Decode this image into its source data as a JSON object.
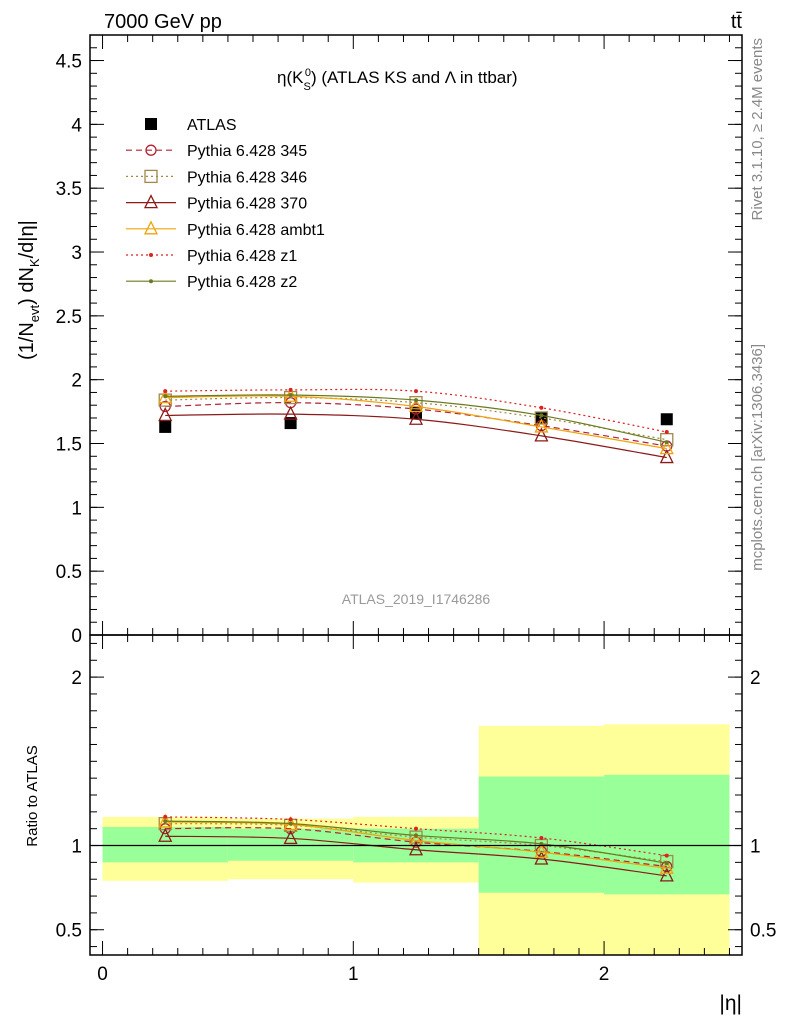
{
  "header": {
    "left_label": "7000 GeV pp",
    "right_label": "tt̄"
  },
  "side_labels": {
    "rivet": "Rivet 3.1.10, ≥ 2.4M events",
    "mcplots": "mcplots.cern.ch [arXiv:1306.3436]"
  },
  "chart_data": [
    {
      "type": "line",
      "panel": "main",
      "title": "η(K0S) (ATLAS KS and Λ in ttbar)",
      "title_parts": {
        "eta": "η(K",
        "sub": "S",
        "sup": "0",
        "rest": ") (ATLAS KS and Λ in ttbar)"
      },
      "ylabel": "(1/Nevt) dNK/d|η|",
      "ylabel_parts": {
        "a": "(1/N",
        "evt": "evt",
        "b": ") dN",
        "k": "K",
        "c": "/d|η|"
      },
      "watermark": "ATLAS_2019_I1746286",
      "xlim": [
        -0.05,
        2.55
      ],
      "ylim": [
        0,
        4.7
      ],
      "yticks": [
        0,
        0.5,
        1,
        1.5,
        2,
        2.5,
        3,
        3.5,
        4,
        4.5
      ],
      "ytick_labels": [
        "0",
        "0.5",
        "1",
        "1.5",
        "2",
        "2.5",
        "3",
        "3.5",
        "4",
        "4.5"
      ],
      "x": [
        0.25,
        0.75,
        1.25,
        1.75,
        2.25
      ],
      "series": [
        {
          "name": "ATLAS",
          "color": "#000000",
          "marker": "square",
          "style": "none",
          "values": [
            1.63,
            1.66,
            1.74,
            1.7,
            1.69
          ]
        },
        {
          "name": "Pythia 6.428 345",
          "color": "#b22234",
          "marker": "circle",
          "style": "dashed",
          "values": [
            1.79,
            1.82,
            1.77,
            1.64,
            1.48
          ]
        },
        {
          "name": "Pythia 6.428 346",
          "color": "#a0894b",
          "marker": "square-open",
          "style": "dotted",
          "values": [
            1.84,
            1.86,
            1.82,
            1.7,
            1.53
          ]
        },
        {
          "name": "Pythia 6.428 370",
          "color": "#8b1a1a",
          "marker": "triangle",
          "style": "solid",
          "values": [
            1.72,
            1.73,
            1.69,
            1.56,
            1.39
          ]
        },
        {
          "name": "Pythia 6.428 ambt1",
          "color": "#f0a30a",
          "marker": "triangle",
          "style": "solid",
          "values": [
            1.86,
            1.87,
            1.79,
            1.63,
            1.46
          ]
        },
        {
          "name": "Pythia 6.428 z1",
          "color": "#dd2222",
          "marker": "dot",
          "style": "dotted",
          "values": [
            1.91,
            1.92,
            1.91,
            1.78,
            1.59
          ]
        },
        {
          "name": "Pythia 6.428 z2",
          "color": "#6b7a1f",
          "marker": "dot",
          "style": "solid",
          "values": [
            1.87,
            1.88,
            1.84,
            1.72,
            1.51
          ]
        }
      ]
    },
    {
      "type": "line",
      "panel": "ratio",
      "ylabel": "Ratio to ATLAS",
      "xlabel": "|η|",
      "xlim": [
        -0.05,
        2.55
      ],
      "ylim": [
        0.35,
        2.25
      ],
      "xticks": [
        0,
        1,
        2
      ],
      "xtick_labels": [
        "0",
        "1",
        "2"
      ],
      "yticks": [
        0.5,
        1,
        2
      ],
      "ytick_labels": [
        "0.5",
        "1",
        "2"
      ],
      "bins": [
        [
          0,
          0.5
        ],
        [
          0.5,
          1
        ],
        [
          1,
          1.5
        ],
        [
          1.5,
          2
        ],
        [
          2,
          2.5
        ]
      ],
      "band_outer": [
        [
          0.79,
          1.17
        ],
        [
          0.8,
          1.16
        ],
        [
          0.78,
          1.17
        ],
        [
          0.35,
          1.71
        ],
        [
          0.35,
          1.72
        ]
      ],
      "band_inner": [
        [
          0.9,
          1.11
        ],
        [
          0.91,
          1.1
        ],
        [
          0.9,
          1.1
        ],
        [
          0.72,
          1.41
        ],
        [
          0.71,
          1.42
        ]
      ],
      "band_colors": {
        "outer": "#ffff99",
        "inner": "#99ff99"
      },
      "x": [
        0.25,
        0.75,
        1.25,
        1.75,
        2.25
      ],
      "series": [
        {
          "name": "Pythia 6.428 345",
          "color": "#b22234",
          "marker": "circle",
          "style": "dashed",
          "values": [
            1.1,
            1.1,
            1.02,
            0.965,
            0.875
          ]
        },
        {
          "name": "Pythia 6.428 346",
          "color": "#a0894b",
          "marker": "square-open",
          "style": "dotted",
          "values": [
            1.13,
            1.12,
            1.05,
            1.0,
            0.905
          ]
        },
        {
          "name": "Pythia 6.428 370",
          "color": "#8b1a1a",
          "marker": "triangle",
          "style": "solid",
          "values": [
            1.055,
            1.042,
            0.975,
            0.92,
            0.82
          ]
        },
        {
          "name": "Pythia 6.428 ambt1",
          "color": "#f0a30a",
          "marker": "triangle",
          "style": "solid",
          "values": [
            1.14,
            1.125,
            1.03,
            0.96,
            0.865
          ]
        },
        {
          "name": "Pythia 6.428 z1",
          "color": "#dd2222",
          "marker": "dot",
          "style": "dotted",
          "values": [
            1.17,
            1.155,
            1.1,
            1.045,
            0.94
          ]
        },
        {
          "name": "Pythia 6.428 z2",
          "color": "#6b7a1f",
          "marker": "dot",
          "style": "solid",
          "values": [
            1.145,
            1.13,
            1.06,
            1.01,
            0.895
          ]
        }
      ]
    }
  ]
}
